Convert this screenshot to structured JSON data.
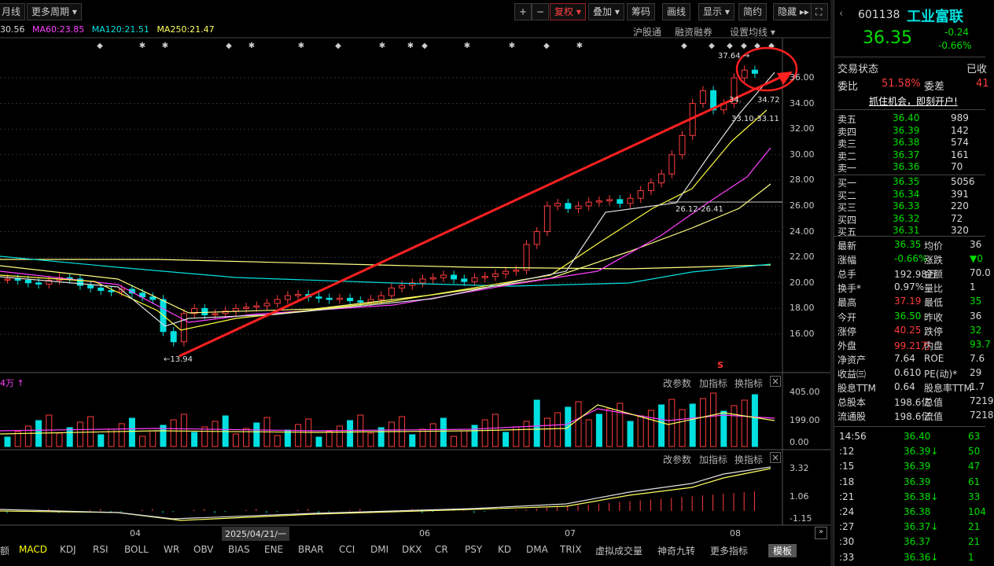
{
  "toolbar": {
    "period": "月线",
    "more_period": "更多周期 ▾",
    "plus": "+",
    "minus": "−",
    "fuquan": "复权 ▾",
    "overlay": "叠加 ▾",
    "chouma": "筹码",
    "huaxian": "画线",
    "display": "显示 ▾",
    "jianyue": "简约",
    "hide": "隐藏 ▸▸",
    "expand": "⛶"
  },
  "ma_bar": {
    "ma30": "30.56",
    "ma60": "MA60:23.85",
    "ma120": "MA120:21.51",
    "ma250": "MA250:21.47"
  },
  "links": {
    "hgt": "沪股通",
    "rzrq": "融资融券",
    "set_ma": "设置均线 ▾"
  },
  "price_axis": [
    "36.00",
    "34.00",
    "32.00",
    "30.00",
    "28.00",
    "26.00",
    "24.00",
    "22.00",
    "20.00",
    "18.00",
    "16.00"
  ],
  "annotations": {
    "high": "37.64",
    "low": "←13.94",
    "mid": "26.12-26.41",
    "a1": "34.",
    "a2": "34.72",
    "a3": "33.10-33.11",
    "s_marker": "S"
  },
  "vol_panel": {
    "label": "4万 ↑",
    "btn1": "改参数",
    "btn2": "加指标",
    "btn3": "换指标",
    "close": "×",
    "axis": [
      "405.00",
      "199.00",
      "0.00"
    ]
  },
  "macd_panel": {
    "btn1": "改参数",
    "btn2": "加指标",
    "btn3": "换指标",
    "close": "×",
    "axis": [
      "3.32",
      "1.06",
      "-1.15"
    ]
  },
  "dates": {
    "m04": "04",
    "sel": "2025/04/21/一",
    "m06": "06",
    "m07": "07",
    "m08": "08"
  },
  "bottom_tabs": [
    "额",
    "MACD",
    "KDJ",
    "RSI",
    "BOLL",
    "WR",
    "OBV",
    "BIAS",
    "ENE",
    "BRAR",
    "CCI",
    "DMI",
    "DKX",
    "CR",
    "PSY",
    "KD",
    "DMA",
    "TRIX",
    "虚拟成交量",
    "神奇九转",
    "更多指标",
    "模板"
  ],
  "stock": {
    "code": "601138",
    "name": "工业富联",
    "price": "36.35",
    "change": "-0.24",
    "pct": "-0.66%",
    "status_label": "交易状态",
    "status_val": "已收",
    "ad": "抓住机会，即刻开户!"
  },
  "weibi": {
    "l1": "委比",
    "v1": "51.58%",
    "l2": "委差",
    "v2": "41"
  },
  "asks": [
    [
      "卖五",
      "36.40",
      "989"
    ],
    [
      "卖四",
      "36.39",
      "142"
    ],
    [
      "卖三",
      "36.38",
      "574"
    ],
    [
      "卖二",
      "36.37",
      "161"
    ],
    [
      "卖一",
      "36.36",
      "70"
    ]
  ],
  "bids": [
    [
      "买一",
      "36.35",
      "5056"
    ],
    [
      "买二",
      "36.34",
      "391"
    ],
    [
      "买三",
      "36.33",
      "220"
    ],
    [
      "买四",
      "36.32",
      "72"
    ],
    [
      "买五",
      "36.31",
      "320"
    ]
  ],
  "stats": [
    [
      "最新",
      "36.35",
      "均价",
      "36"
    ],
    [
      "涨幅",
      "-0.66%",
      "涨跌",
      "▼0"
    ],
    [
      "总手",
      "192.98万",
      "金额",
      "70.0"
    ],
    [
      "换手*",
      "0.97%",
      "量比",
      "1"
    ],
    [
      "最高",
      "37.19",
      "最低",
      "35"
    ],
    [
      "今开",
      "36.50",
      "昨收",
      "36"
    ],
    [
      "涨停",
      "40.25",
      "跌停",
      "32"
    ],
    [
      "外盘",
      "99.21万",
      "内盘",
      "93.7"
    ],
    [
      "净资产",
      "7.64",
      "ROE",
      "7.6"
    ],
    [
      "收益㈢",
      "0.610",
      "PE(动)*",
      "29"
    ],
    [
      "股息TTM",
      "0.64",
      "股息率TTM",
      "1.7"
    ],
    [
      "总股本",
      "198.6亿",
      "总值",
      "7219"
    ],
    [
      "流通股",
      "198.6亿",
      "流值",
      "7218"
    ]
  ],
  "ticks": [
    [
      "14:56",
      "36.40",
      "",
      "63"
    ],
    [
      ":12",
      "36.39",
      "↓",
      "50"
    ],
    [
      ":15",
      "36.39",
      "",
      "47"
    ],
    [
      ":18",
      "36.39",
      "",
      "61"
    ],
    [
      ":21",
      "36.38",
      "↓",
      "33"
    ],
    [
      ":24",
      "36.38",
      "",
      "104"
    ],
    [
      ":27",
      "36.37",
      "↓",
      "21"
    ],
    [
      ":30",
      "36.37",
      "",
      "21"
    ],
    [
      ":33",
      "36.36",
      "↓",
      "1"
    ]
  ]
}
